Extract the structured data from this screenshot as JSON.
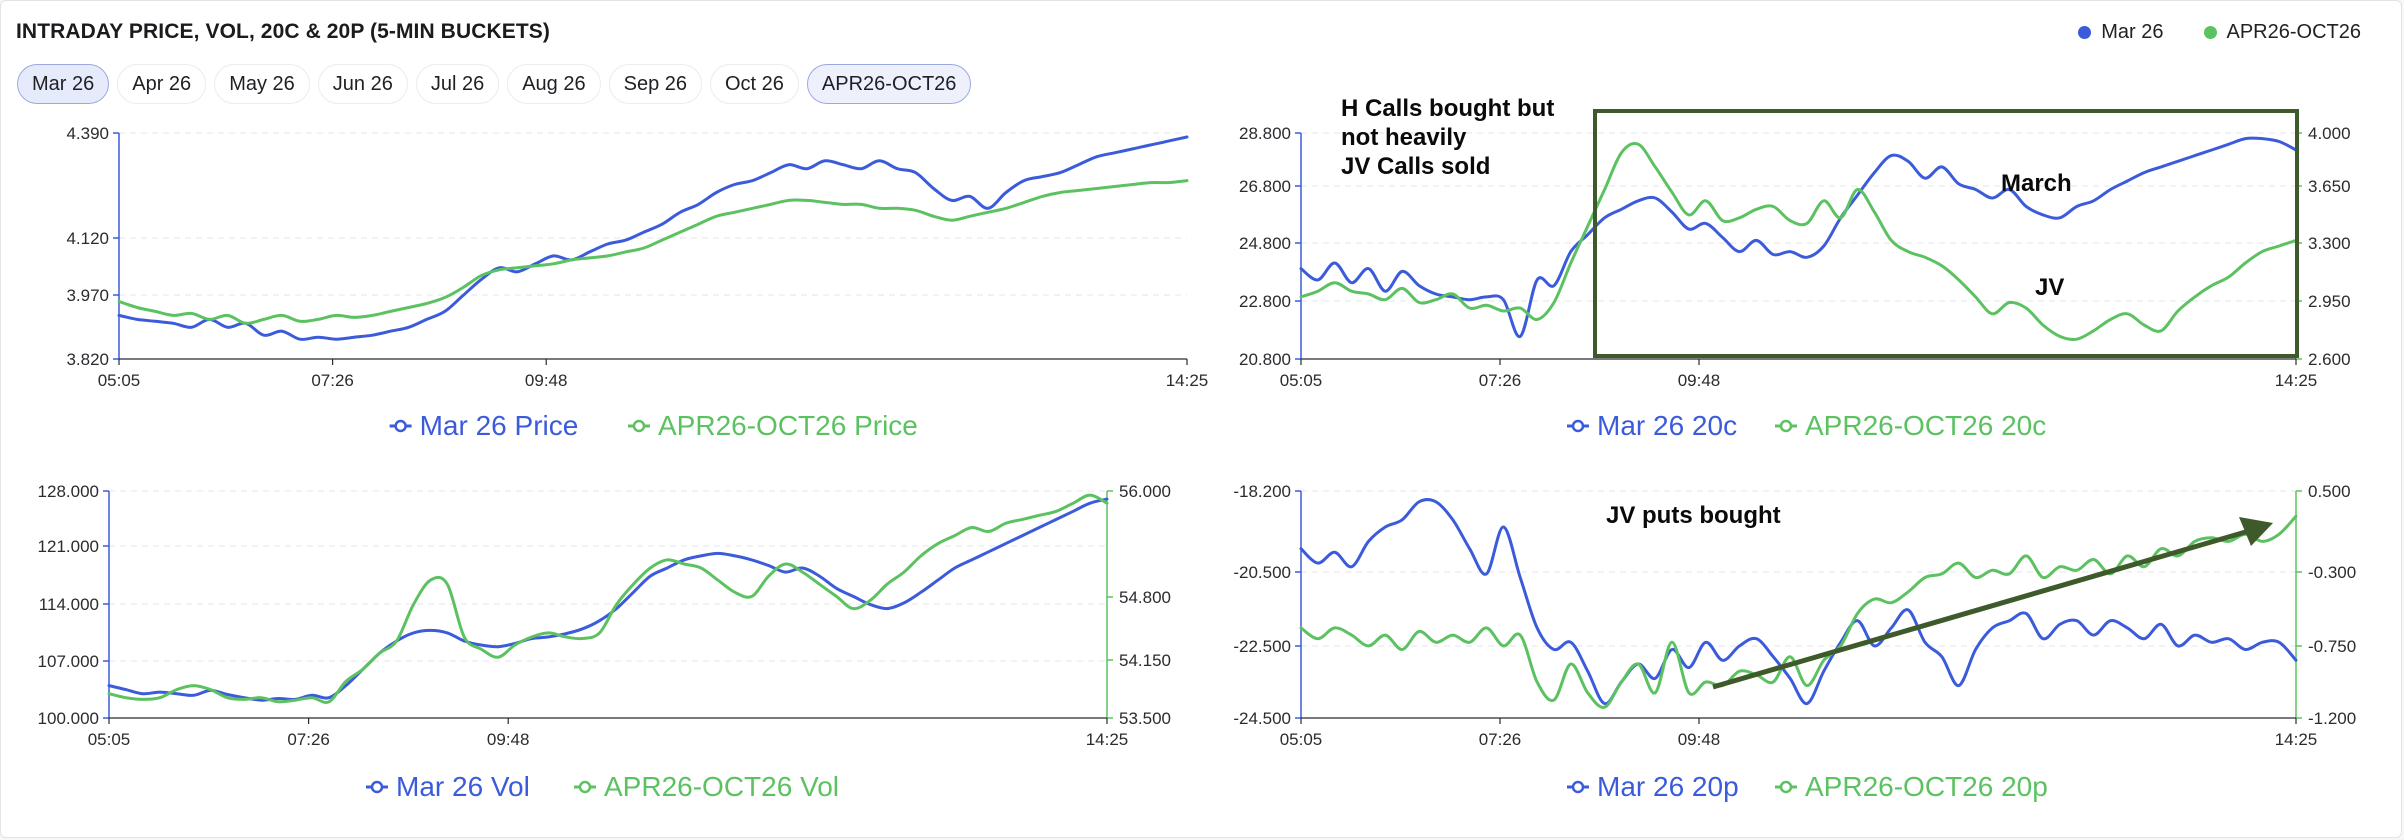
{
  "header": {
    "title": "INTRADAY PRICE, VOL, 20C & 20P (5-MIN BUCKETS)",
    "legend": [
      {
        "label": "Mar 26",
        "color": "#3b5bdb"
      },
      {
        "label": "APR26-OCT26",
        "color": "#5cc261"
      }
    ]
  },
  "tabs": [
    "Mar 26",
    "Apr 26",
    "May 26",
    "Jun 26",
    "Jul 26",
    "Aug 26",
    "Sep 26",
    "Oct 26",
    "APR26-OCT26"
  ],
  "active_tab": "Mar 26",
  "colors": {
    "blue": "#3b5bdb",
    "green": "#5cc261",
    "annotation": "#3f5a2a"
  },
  "annotations": {
    "price20c_box_note": [
      "H Calls bought but",
      "not heavily",
      "JV Calls sold"
    ],
    "price20c_march": "March",
    "price20c_jv": "JV",
    "put_note": "JV puts bought"
  },
  "chart_data": [
    {
      "type": "line",
      "id": "price",
      "x_ticks": [
        "05:05",
        "07:26",
        "09:48",
        "14:25"
      ],
      "y_ticks": [
        "4.390",
        "4.120",
        "3.970",
        "3.820"
      ],
      "ylim": [
        3.82,
        4.39
      ],
      "legend": [
        "Mar 26 Price",
        "APR26-OCT26 Price"
      ],
      "series": [
        {
          "name": "Mar 26 Price",
          "color": "blue",
          "values": [
            3.93,
            3.92,
            3.915,
            3.91,
            3.9,
            3.92,
            3.9,
            3.91,
            3.88,
            3.89,
            3.87,
            3.875,
            3.87,
            3.875,
            3.88,
            3.89,
            3.9,
            3.92,
            3.94,
            3.98,
            4.02,
            4.05,
            4.04,
            4.06,
            4.08,
            4.07,
            4.09,
            4.11,
            4.12,
            4.14,
            4.16,
            4.19,
            4.21,
            4.24,
            4.26,
            4.27,
            4.29,
            4.31,
            4.3,
            4.32,
            4.31,
            4.3,
            4.32,
            4.3,
            4.29,
            4.25,
            4.22,
            4.23,
            4.2,
            4.24,
            4.27,
            4.28,
            4.29,
            4.31,
            4.33,
            4.34,
            4.35,
            4.36,
            4.37,
            4.38
          ]
        },
        {
          "name": "APR26-OCT26 Price",
          "color": "green",
          "values": [
            3.965,
            3.95,
            3.94,
            3.93,
            3.935,
            3.92,
            3.93,
            3.91,
            3.92,
            3.93,
            3.915,
            3.92,
            3.93,
            3.925,
            3.93,
            3.94,
            3.95,
            3.96,
            3.975,
            4.0,
            4.03,
            4.045,
            4.05,
            4.055,
            4.06,
            4.07,
            4.075,
            4.08,
            4.09,
            4.1,
            4.12,
            4.14,
            4.16,
            4.18,
            4.19,
            4.2,
            4.21,
            4.22,
            4.22,
            4.215,
            4.21,
            4.21,
            4.2,
            4.2,
            4.195,
            4.18,
            4.17,
            4.18,
            4.19,
            4.2,
            4.215,
            4.23,
            4.24,
            4.245,
            4.25,
            4.255,
            4.26,
            4.265,
            4.265,
            4.27
          ]
        }
      ]
    },
    {
      "type": "line",
      "id": "call20",
      "x_ticks": [
        "05:05",
        "07:26",
        "09:48",
        "14:25"
      ],
      "y_ticks_left": [
        "28.800",
        "26.800",
        "24.800",
        "22.800",
        "20.800"
      ],
      "y_ticks_right": [
        "4.000",
        "3.650",
        "3.300",
        "2.950",
        "2.600"
      ],
      "ylim_left": [
        20.8,
        28.8
      ],
      "ylim_right": [
        2.6,
        4.0
      ],
      "legend": [
        "Mar 26 20c",
        "APR26-OCT26 20c"
      ],
      "series": [
        {
          "name": "Mar 26 20c",
          "color": "blue",
          "axis": "left",
          "values": [
            24.0,
            23.6,
            24.2,
            23.5,
            24.0,
            23.2,
            23.9,
            23.4,
            23.1,
            23.0,
            22.9,
            23.0,
            22.9,
            21.6,
            23.6,
            23.4,
            24.6,
            25.2,
            25.8,
            26.1,
            26.4,
            26.5,
            26.0,
            25.4,
            25.6,
            25.1,
            24.6,
            25.0,
            24.5,
            24.6,
            24.4,
            24.8,
            25.8,
            26.6,
            27.4,
            28.0,
            27.8,
            27.2,
            27.6,
            27.0,
            26.8,
            26.5,
            26.8,
            26.2,
            25.9,
            25.8,
            26.2,
            26.4,
            26.8,
            27.1,
            27.4,
            27.6,
            27.8,
            28.0,
            28.2,
            28.4,
            28.6,
            28.6,
            28.5,
            28.2
          ]
        },
        {
          "name": "APR26-OCT26 20c",
          "color": "green",
          "axis": "left",
          "values": [
            23.0,
            23.2,
            23.5,
            23.2,
            23.1,
            22.9,
            23.3,
            22.8,
            22.9,
            23.1,
            22.6,
            22.7,
            22.5,
            22.6,
            22.2,
            22.8,
            24.2,
            25.5,
            26.8,
            28.1,
            28.4,
            27.6,
            26.7,
            25.9,
            26.4,
            25.7,
            25.8,
            26.1,
            26.2,
            25.7,
            25.6,
            26.4,
            25.8,
            26.8,
            26.0,
            25.0,
            24.6,
            24.4,
            24.1,
            23.6,
            23.0,
            22.4,
            22.8,
            22.6,
            22.0,
            21.6,
            21.5,
            21.8,
            22.2,
            22.4,
            22.0,
            21.8,
            22.5,
            23.0,
            23.4,
            23.7,
            24.2,
            24.6,
            24.8,
            25.0
          ]
        }
      ]
    },
    {
      "type": "line",
      "id": "vol",
      "x_ticks": [
        "05:05",
        "07:26",
        "09:48",
        "14:25"
      ],
      "y_ticks_left": [
        "128.000",
        "121.000",
        "114.000",
        "107.000",
        "100.000"
      ],
      "y_ticks_right": [
        "56.000",
        "54.800",
        "54.150",
        "53.500"
      ],
      "ylim_left": [
        100.0,
        128.0
      ],
      "ylim_right": [
        53.5,
        56.0
      ],
      "legend": [
        "Mar 26 Vol",
        "APR26-OCT26 Vol"
      ],
      "series": [
        {
          "name": "Mar 26 Vol",
          "color": "blue",
          "axis": "left",
          "values": [
            104.0,
            103.5,
            103.0,
            103.2,
            103.0,
            102.8,
            103.4,
            102.9,
            102.5,
            102.2,
            102.4,
            102.3,
            102.8,
            102.5,
            104.0,
            106.0,
            108.0,
            109.5,
            110.5,
            110.8,
            110.5,
            109.5,
            109.0,
            108.8,
            109.2,
            109.8,
            110.0,
            110.4,
            111.0,
            112.0,
            113.5,
            115.5,
            117.5,
            118.5,
            119.5,
            120.0,
            120.3,
            120.0,
            119.5,
            118.8,
            118.0,
            118.5,
            117.5,
            116.0,
            115.0,
            114.0,
            113.5,
            114.2,
            115.5,
            117.0,
            118.5,
            119.5,
            120.5,
            121.5,
            122.5,
            123.5,
            124.5,
            125.5,
            126.5,
            127.0
          ]
        },
        {
          "name": "APR26-OCT26 Vol",
          "color": "green",
          "axis": "left",
          "values": [
            103.0,
            102.5,
            102.3,
            102.5,
            103.5,
            104.0,
            103.5,
            102.5,
            102.3,
            102.5,
            102.0,
            102.2,
            102.5,
            102.0,
            104.5,
            106.0,
            108.0,
            109.5,
            114.0,
            117.0,
            116.5,
            110.0,
            108.5,
            107.5,
            109.0,
            110.0,
            110.5,
            110.0,
            109.8,
            110.5,
            114.0,
            116.5,
            118.5,
            119.5,
            119.0,
            118.5,
            117.0,
            115.5,
            115.0,
            117.5,
            119.0,
            118.0,
            116.5,
            115.0,
            113.5,
            114.5,
            116.5,
            118.0,
            120.0,
            121.5,
            122.5,
            123.5,
            123.0,
            124.0,
            124.5,
            125.0,
            125.5,
            126.5,
            127.5,
            126.5
          ]
        }
      ]
    },
    {
      "type": "line",
      "id": "put20",
      "x_ticks": [
        "05:05",
        "07:26",
        "09:48",
        "14:25"
      ],
      "y_ticks_left": [
        "-18.200",
        "-20.500",
        "-22.500",
        "-24.500"
      ],
      "y_ticks_right": [
        "0.500",
        "-0.300",
        "-0.750",
        "-1.200"
      ],
      "ylim_left": [
        -24.5,
        -18.2
      ],
      "ylim_right": [
        -1.2,
        0.5
      ],
      "legend": [
        "Mar 26 20p",
        "APR26-OCT26 20p"
      ],
      "series": [
        {
          "name": "Mar 26 20p",
          "color": "blue",
          "axis": "left",
          "values": [
            -19.8,
            -20.2,
            -19.9,
            -20.3,
            -19.6,
            -19.2,
            -19.0,
            -18.5,
            -18.5,
            -19.0,
            -19.8,
            -20.5,
            -19.2,
            -20.6,
            -22.0,
            -22.6,
            -22.4,
            -23.2,
            -24.1,
            -23.5,
            -23.0,
            -23.4,
            -22.6,
            -23.1,
            -22.4,
            -22.9,
            -22.5,
            -22.3,
            -22.8,
            -23.4,
            -24.1,
            -23.2,
            -22.4,
            -21.8,
            -22.5,
            -22.0,
            -21.5,
            -22.4,
            -22.8,
            -23.6,
            -22.6,
            -22.0,
            -21.8,
            -21.6,
            -22.3,
            -21.9,
            -21.8,
            -22.2,
            -21.8,
            -22.0,
            -22.3,
            -21.9,
            -22.5,
            -22.2,
            -22.4,
            -22.3,
            -22.6,
            -22.4,
            -22.4,
            -22.9
          ]
        },
        {
          "name": "APR26-OCT26 20p",
          "color": "green",
          "axis": "left",
          "values": [
            -22.0,
            -22.3,
            -22.0,
            -22.2,
            -22.5,
            -22.2,
            -22.6,
            -22.1,
            -22.4,
            -22.2,
            -22.4,
            -22.0,
            -22.5,
            -22.2,
            -23.5,
            -24.0,
            -23.0,
            -23.8,
            -24.2,
            -23.5,
            -23.0,
            -23.8,
            -22.4,
            -23.8,
            -23.5,
            -23.6,
            -23.2,
            -23.3,
            -23.5,
            -22.8,
            -23.6,
            -22.9,
            -22.5,
            -21.6,
            -21.2,
            -21.3,
            -21.0,
            -20.6,
            -20.5,
            -20.2,
            -20.6,
            -20.4,
            -20.5,
            -20.0,
            -20.6,
            -20.3,
            -20.4,
            -20.1,
            -20.5,
            -20.0,
            -20.3,
            -19.8,
            -20.0,
            -19.6,
            -19.5,
            -19.6,
            -19.4,
            -19.6,
            -19.4,
            -18.9
          ]
        }
      ]
    }
  ]
}
